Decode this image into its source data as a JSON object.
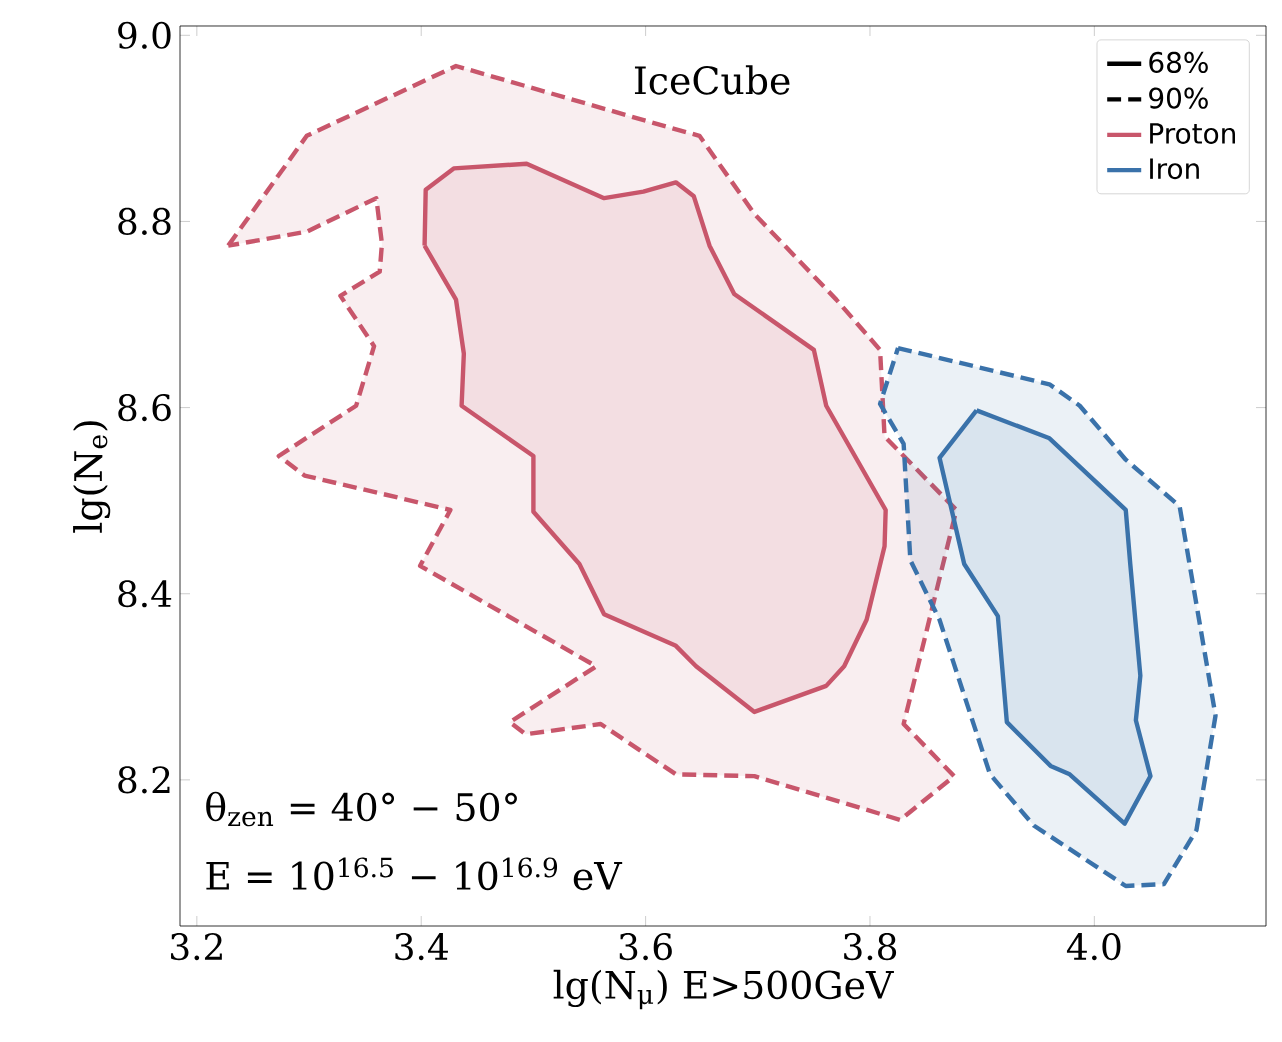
{
  "chart_data": {
    "type": "area",
    "xlabel": "lg(N$_{μ}$) E>500GeV",
    "ylabel": "lg(N$_{e}$)",
    "xlim": [
      3.185,
      4.153
    ],
    "ylim": [
      8.043,
      9.01
    ],
    "xticks": [
      3.2,
      3.4,
      3.6,
      3.8,
      {
        "value": 4.0,
        "label": "4.0"
      }
    ],
    "yticks": [
      8.2,
      8.4,
      8.6,
      8.8,
      {
        "value": 9.0,
        "label": "9.0"
      }
    ],
    "grid": false,
    "legend": "top right",
    "marker": "none",
    "annotations": [
      "IceCube",
      "θ$_{zen}$ = 40° − 50°",
      "E = 10$^{16.5}$ − 10$^{16.9}$ eV"
    ],
    "series": [
      {
        "name": "68%",
        "color": "#000000",
        "line_style": "solid"
      },
      {
        "name": "90%",
        "color": "#000000",
        "line_style": "dashed"
      },
      {
        "color": "#c8566b",
        "line_style": "dashed",
        "x": [
          3.228,
          3.298,
          3.431,
          3.618,
          3.648,
          3.697,
          3.77,
          3.809,
          3.813,
          3.877,
          3.83,
          3.875,
          3.827,
          3.697,
          3.627,
          3.56,
          3.493,
          3.479,
          3.556,
          3.399,
          3.426,
          3.296,
          3.273,
          3.342,
          3.358,
          3.328,
          3.363,
          3.365,
          3.36,
          3.298,
          3.228
        ],
        "values": [
          8.774,
          8.892,
          8.967,
          8.902,
          8.892,
          8.808,
          8.716,
          8.662,
          8.569,
          8.49,
          8.26,
          8.204,
          8.157,
          8.204,
          8.206,
          8.26,
          8.249,
          8.262,
          8.322,
          8.43,
          8.49,
          8.527,
          8.548,
          8.602,
          8.666,
          8.72,
          8.746,
          8.776,
          8.825,
          8.789,
          8.774
        ]
      },
      {
        "name": "Proton",
        "color": "#c8566b",
        "line_style": "solid",
        "x": [
          3.403,
          3.404,
          3.429,
          3.494,
          3.563,
          3.598,
          3.627,
          3.643,
          3.657,
          3.679,
          3.75,
          3.761,
          3.814,
          3.813,
          3.797,
          3.777,
          3.761,
          3.697,
          3.645,
          3.627,
          3.563,
          3.541,
          3.5,
          3.5,
          3.436,
          3.438,
          3.431,
          3.403
        ],
        "values": [
          8.774,
          8.834,
          8.857,
          8.862,
          8.825,
          8.832,
          8.842,
          8.827,
          8.774,
          8.722,
          8.662,
          8.602,
          8.49,
          8.451,
          8.372,
          8.322,
          8.301,
          8.273,
          8.322,
          8.344,
          8.378,
          8.432,
          8.488,
          8.548,
          8.602,
          8.658,
          8.716,
          8.774
        ]
      },
      {
        "color": "#3a72aa",
        "line_style": "dashed",
        "x": [
          3.825,
          3.96,
          3.987,
          4.028,
          4.076,
          4.108,
          4.091,
          4.062,
          4.028,
          3.946,
          3.907,
          3.862,
          3.836,
          3.83,
          3.809,
          3.825
        ],
        "values": [
          8.664,
          8.625,
          8.602,
          8.544,
          8.494,
          8.269,
          8.146,
          8.088,
          8.086,
          8.151,
          8.206,
          8.372,
          8.436,
          8.561,
          8.604,
          8.664
        ]
      },
      {
        "name": "Iron",
        "color": "#3a72aa",
        "line_style": "solid",
        "x": [
          3.895,
          3.96,
          4.028,
          4.032,
          4.041,
          4.037,
          4.05,
          4.027,
          3.978,
          3.961,
          3.922,
          3.914,
          3.884,
          3.862,
          3.895
        ],
        "values": [
          8.597,
          8.567,
          8.49,
          8.432,
          8.312,
          8.264,
          8.204,
          8.153,
          8.206,
          8.215,
          8.262,
          8.376,
          8.432,
          8.546,
          8.597
        ]
      }
    ]
  }
}
